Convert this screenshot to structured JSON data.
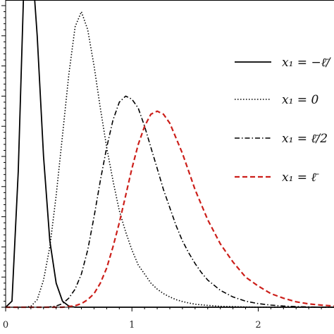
{
  "chart_data": {
    "type": "line",
    "title": "",
    "xlabel": "",
    "ylabel": "",
    "xlim": [
      0,
      2.6
    ],
    "ylim": [
      0,
      1
    ],
    "x_ticks": [
      0,
      1,
      2
    ],
    "x_tick_labels": [
      "0",
      "1",
      "2"
    ],
    "grid": false,
    "legend_position": "right",
    "x": [
      0,
      0.05,
      0.1,
      0.15,
      0.2,
      0.25,
      0.3,
      0.35,
      0.4,
      0.45,
      0.5,
      0.55,
      0.6,
      0.65,
      0.7,
      0.75,
      0.8,
      0.85,
      0.9,
      0.95,
      1.0,
      1.05,
      1.1,
      1.15,
      1.2,
      1.25,
      1.3,
      1.35,
      1.4,
      1.45,
      1.5,
      1.55,
      1.6,
      1.7,
      1.8,
      1.9,
      2.0,
      2.1,
      2.2,
      2.3,
      2.4,
      2.5,
      2.6
    ],
    "series": [
      {
        "name": "x_1 = −ℓ̄/…",
        "legend_label": "x₁ = −ℓ̄/",
        "color": "#000000",
        "dash": "solid",
        "values": [
          0,
          0.02,
          0.45,
          1.15,
          1.25,
          0.9,
          0.5,
          0.22,
          0.08,
          0.02,
          0.004,
          0,
          0,
          0,
          0,
          0,
          0,
          0,
          0,
          0,
          0,
          0,
          0,
          0,
          0,
          0,
          0,
          0,
          0,
          0,
          0,
          0,
          0,
          0,
          0,
          0,
          0,
          0,
          0,
          0,
          0,
          0,
          0
        ]
      },
      {
        "name": "x_1 = 0",
        "legend_label": "x₁ = 0",
        "color": "#000000",
        "dash": "dotted",
        "values": [
          0,
          0,
          0,
          0,
          0.003,
          0.025,
          0.09,
          0.2,
          0.37,
          0.57,
          0.77,
          0.93,
          0.98,
          0.92,
          0.8,
          0.66,
          0.53,
          0.42,
          0.32,
          0.25,
          0.19,
          0.14,
          0.11,
          0.08,
          0.06,
          0.045,
          0.034,
          0.025,
          0.019,
          0.014,
          0.01,
          0.008,
          0.006,
          0.003,
          0.002,
          0.001,
          0,
          0,
          0,
          0,
          0,
          0,
          0
        ]
      },
      {
        "name": "x_1 = ℓ̄/2",
        "legend_label": "x₁ = ℓ̄/2",
        "color": "#000000",
        "dash": "dashdot",
        "values": [
          0,
          0,
          0,
          0,
          0,
          0,
          0,
          0.001,
          0.004,
          0.012,
          0.03,
          0.06,
          0.11,
          0.19,
          0.3,
          0.42,
          0.53,
          0.62,
          0.68,
          0.7,
          0.69,
          0.66,
          0.6,
          0.53,
          0.46,
          0.39,
          0.33,
          0.27,
          0.22,
          0.18,
          0.145,
          0.115,
          0.09,
          0.056,
          0.034,
          0.02,
          0.012,
          0.007,
          0.004,
          0.002,
          0.001,
          0,
          0
        ]
      },
      {
        "name": "x_1 = ℓ̄",
        "legend_label": "x₁ = ℓ̄",
        "color": "#cc1f1a",
        "dash": "dashed",
        "values": [
          0,
          0,
          0,
          0,
          0,
          0,
          0,
          0,
          0,
          0,
          0.002,
          0.005,
          0.012,
          0.025,
          0.045,
          0.08,
          0.13,
          0.2,
          0.28,
          0.37,
          0.46,
          0.54,
          0.6,
          0.64,
          0.65,
          0.64,
          0.61,
          0.56,
          0.51,
          0.45,
          0.39,
          0.34,
          0.29,
          0.21,
          0.15,
          0.1,
          0.07,
          0.045,
          0.03,
          0.018,
          0.011,
          0.007,
          0.004
        ]
      }
    ]
  }
}
